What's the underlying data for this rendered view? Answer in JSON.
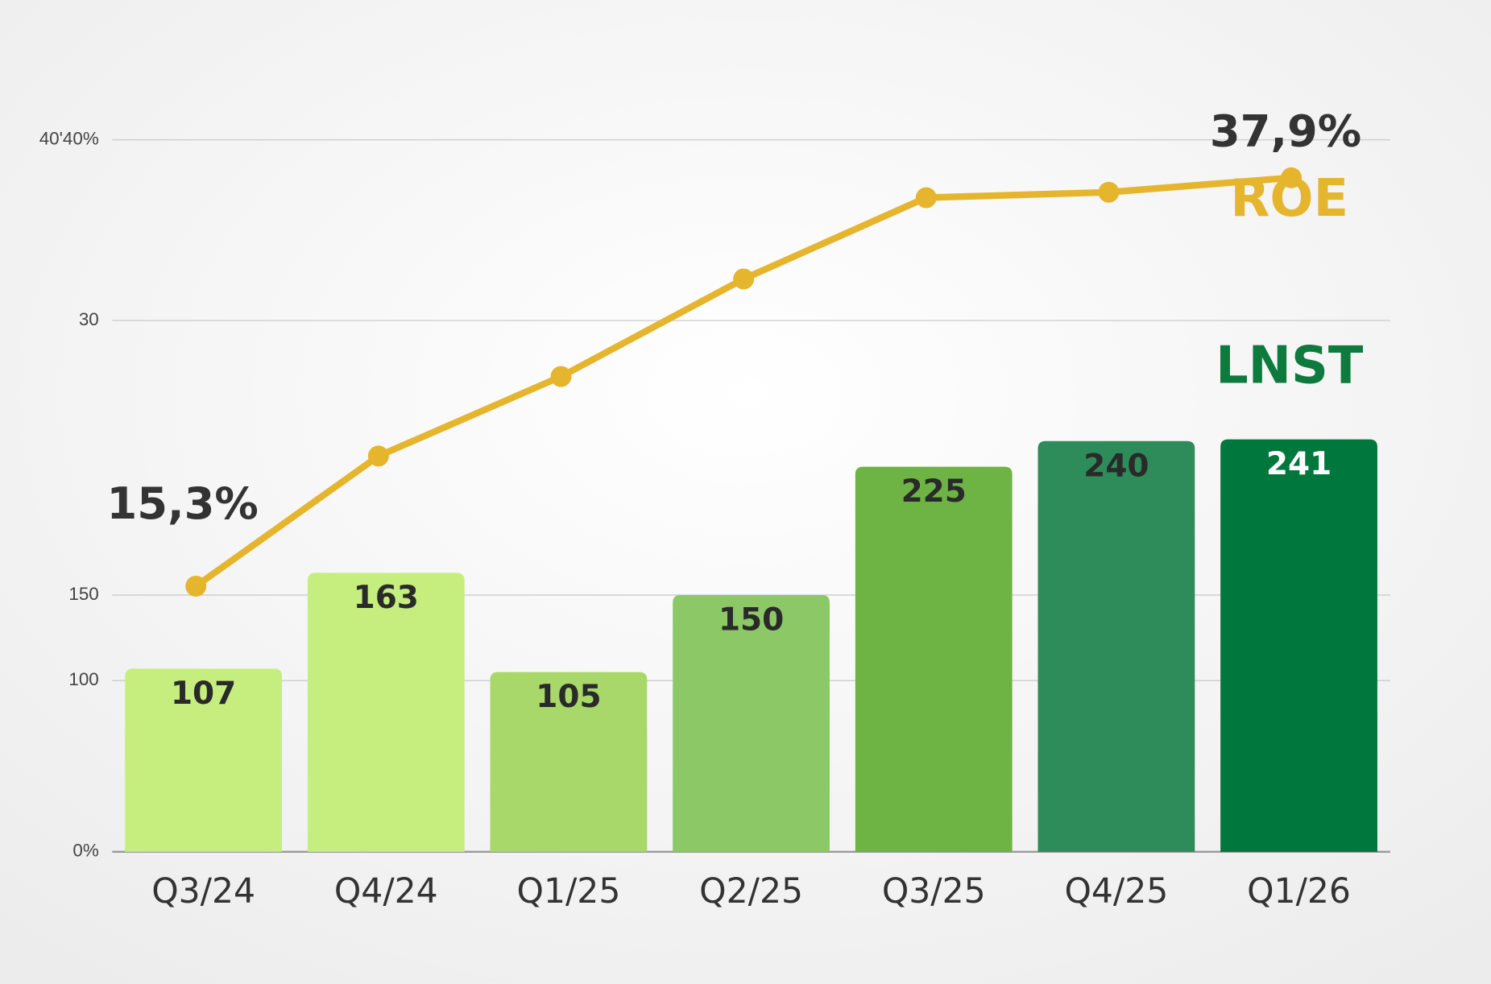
{
  "chart_data": {
    "type": "bar-line",
    "categories": [
      "Q3/24",
      "Q4/24",
      "Q1/25",
      "Q2/25",
      "Q3/25",
      "Q4/25",
      "Q1/26"
    ],
    "series": [
      {
        "name": "LNST",
        "color": "#0f7a3d",
        "type": "bar",
        "colors": [
          "#c6ee7e",
          "#c6ee7e",
          "#a9d86a",
          "#8cc866",
          "#6db445",
          "#2e8c5b",
          "#00773d"
        ],
        "values": [
          107,
          163,
          105,
          150,
          225,
          240,
          241
        ]
      },
      {
        "name": "ROE",
        "color": "#e6b52e",
        "type": "line",
        "axis": "y2",
        "values": [
          15.3,
          22.5,
          26.9,
          32.3,
          36.8,
          37.1,
          37.9
        ],
        "value_labels": [
          "15,3%",
          null,
          null,
          null,
          null,
          null,
          "37,9%"
        ]
      }
    ],
    "ylim": [
      0,
      416
    ],
    "yticks": [
      {
        "value": 0,
        "label": "0%"
      },
      100,
      150
    ],
    "y2lim": [
      0.6,
      40
    ],
    "y2ticks": [
      30,
      {
        "value": 40,
        "label": "40'40%"
      }
    ],
    "grid": true
  }
}
